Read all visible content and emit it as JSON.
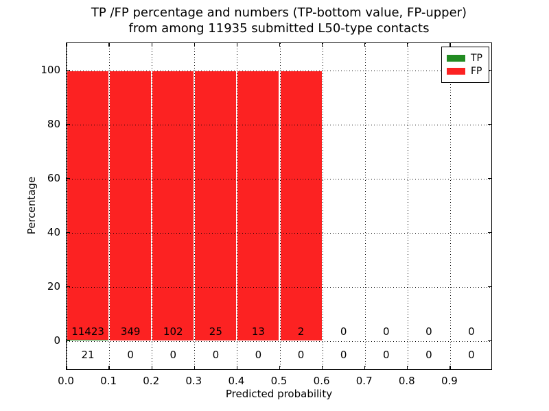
{
  "title": {
    "line1": "TP /FP percentage and numbers (TP-bottom value, FP-upper)",
    "line2": "from among 11935 submitted L50-type contacts"
  },
  "chart_data": {
    "type": "bar",
    "stacked": true,
    "title": "TP /FP percentage and numbers (TP-bottom value, FP-upper) from among 11935 submitted L50-type contacts",
    "xlabel": "Predicted probability",
    "ylabel": "Percentage",
    "xlim": [
      0.0,
      1.0
    ],
    "ylim": [
      -11,
      110
    ],
    "xtick_values": [
      0.0,
      0.1,
      0.2,
      0.3,
      0.4,
      0.5,
      0.6,
      0.7,
      0.8,
      0.9
    ],
    "xtick_labels": [
      "0.0",
      "0.1",
      "0.2",
      "0.3",
      "0.4",
      "0.5",
      "0.6",
      "0.7",
      "0.8",
      "0.9"
    ],
    "ytick_values": [
      0,
      20,
      40,
      60,
      80,
      100
    ],
    "ytick_labels": [
      "0",
      "20",
      "40",
      "60",
      "80",
      "100"
    ],
    "grid": {
      "style": "dotted",
      "color": "#000000"
    },
    "bar_width": 0.1,
    "bin_centers": [
      0.05,
      0.15,
      0.25,
      0.35,
      0.45,
      0.55,
      0.65,
      0.75,
      0.85,
      0.95
    ],
    "series": [
      {
        "name": "TP",
        "color": "#228b22",
        "percent": [
          0.18,
          0,
          0,
          0,
          0,
          0,
          0,
          0,
          0,
          0
        ],
        "counts": [
          21,
          0,
          0,
          0,
          0,
          0,
          0,
          0,
          0,
          0
        ]
      },
      {
        "name": "FP",
        "color": "#fc2222",
        "percent": [
          99.82,
          100,
          100,
          100,
          100,
          100,
          0,
          0,
          0,
          0
        ],
        "counts": [
          11423,
          349,
          102,
          25,
          13,
          2,
          0,
          0,
          0,
          0
        ]
      }
    ],
    "count_labels": {
      "fp_row": [
        "11423",
        "349",
        "102",
        "25",
        "13",
        "2",
        "0",
        "0",
        "0",
        "0"
      ],
      "tp_row": [
        "21",
        "0",
        "0",
        "0",
        "0",
        "0",
        "0",
        "0",
        "0",
        "0"
      ]
    },
    "legend": {
      "position": "upper-right",
      "entries": [
        {
          "label": "TP",
          "color": "#228b22"
        },
        {
          "label": "FP",
          "color": "#fc2222"
        }
      ]
    },
    "colors": {
      "background": "#ffffff",
      "spine": "#000000",
      "text": "#000000"
    }
  }
}
